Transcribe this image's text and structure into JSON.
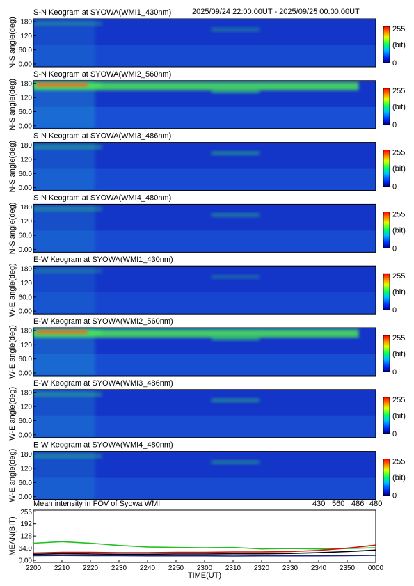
{
  "header": {
    "time_range": "2025/09/24 22:00:00UT - 2025/09/25 00:00:00UT"
  },
  "colors": {
    "keogram_base": "#1436c8",
    "series_430": "#1a237e",
    "series_560": "#22c022",
    "series_486": "#d01010",
    "series_480": "#000000"
  },
  "panels": [
    {
      "title": "S-N Keogram at SYOWA(WMI1_430nm)",
      "ylabel": "N-S angle(deg)",
      "yticks": [
        "180",
        "120",
        "60.0",
        "0.00"
      ],
      "colorbar_max": "255",
      "colorbar_unit": "(bit)",
      "colorbar_min": "0",
      "intensity": 0.25
    },
    {
      "title": "S-N Keogram at SYOWA(WMI2_560nm)",
      "ylabel": "N-S angle(deg)",
      "yticks": [
        "180",
        "120",
        "60.0",
        "0.00"
      ],
      "colorbar_max": "255",
      "colorbar_unit": "(bit)",
      "colorbar_min": "0",
      "intensity": 0.45
    },
    {
      "title": "S-N Keogram at SYOWA(WMI3_486nm)",
      "ylabel": "N-S angle(deg)",
      "yticks": [
        "180",
        "120",
        "60.0",
        "0.00"
      ],
      "colorbar_max": "255",
      "colorbar_unit": "(bit)",
      "colorbar_min": "0",
      "intensity": 0.33
    },
    {
      "title": "S-N Keogram at SYOWA(WMI4_480nm)",
      "ylabel": "N-S angle(deg)",
      "yticks": [
        "180",
        "120",
        "60.0",
        "0.00"
      ],
      "colorbar_max": "255",
      "colorbar_unit": "(bit)",
      "colorbar_min": "0",
      "intensity": 0.3
    },
    {
      "title": "E-W Keogram at SYOWA(WMI1_430nm)",
      "ylabel": "W-E angle(deg)",
      "yticks": [
        "180",
        "120",
        "60.0",
        "0.00"
      ],
      "colorbar_max": "255",
      "colorbar_unit": "(bit)",
      "colorbar_min": "0",
      "intensity": 0.22
    },
    {
      "title": "E-W Keogram at SYOWA(WMI2_560nm)",
      "ylabel": "W-E angle(deg)",
      "yticks": [
        "180",
        "120",
        "60.0",
        "0.00"
      ],
      "colorbar_max": "255",
      "colorbar_unit": "(bit)",
      "colorbar_min": "0",
      "intensity": 0.42
    },
    {
      "title": "E-W Keogram at SYOWA(WMI3_486nm)",
      "ylabel": "W-E angle(deg)",
      "yticks": [
        "180",
        "120",
        "60.0",
        "0.00"
      ],
      "colorbar_max": "255",
      "colorbar_unit": "(bit)",
      "colorbar_min": "0",
      "intensity": 0.33
    },
    {
      "title": "E-W Keogram at SYOWA(WMI4_480nm)",
      "ylabel": "W-E angle(deg)",
      "yticks": [
        "180",
        "120",
        "60.0",
        "0.00"
      ],
      "colorbar_max": "255",
      "colorbar_unit": "(bit)",
      "colorbar_min": "0",
      "intensity": 0.3
    }
  ],
  "mean": {
    "title": "Mean intensity in FOV of Syowa WMI",
    "ylabel": "MEAN(BIT)",
    "yticks": [
      "256",
      "192",
      "128",
      "64.0",
      "0.00"
    ],
    "legend": [
      "430",
      "560",
      "486",
      "480"
    ]
  },
  "xaxis": {
    "ticks": [
      "2200",
      "2210",
      "2220",
      "2230",
      "2240",
      "2250",
      "2300",
      "2310",
      "2320",
      "2330",
      "2340",
      "2350",
      "0000"
    ],
    "label": "TIME(UT)"
  },
  "chart_data": [
    {
      "type": "line",
      "title": "Mean intensity in FOV of Syowa WMI",
      "xlabel": "TIME(UT)",
      "ylabel": "MEAN(BIT)",
      "ylim": [
        0,
        256
      ],
      "x": [
        "2200",
        "2210",
        "2220",
        "2230",
        "2240",
        "2250",
        "2300",
        "2310",
        "2320",
        "2330",
        "2340",
        "2350",
        "0000"
      ],
      "series": [
        {
          "name": "430",
          "values": [
            24,
            25,
            24,
            24,
            23,
            23,
            23,
            22,
            23,
            23,
            23,
            24,
            26
          ]
        },
        {
          "name": "560",
          "values": [
            90,
            98,
            90,
            78,
            70,
            68,
            66,
            68,
            60,
            62,
            60,
            62,
            66
          ]
        },
        {
          "name": "486",
          "values": [
            38,
            42,
            42,
            40,
            40,
            42,
            42,
            44,
            44,
            46,
            52,
            64,
            80
          ]
        },
        {
          "name": "480",
          "values": [
            32,
            34,
            33,
            32,
            32,
            33,
            33,
            34,
            34,
            36,
            40,
            46,
            54
          ]
        }
      ]
    }
  ]
}
